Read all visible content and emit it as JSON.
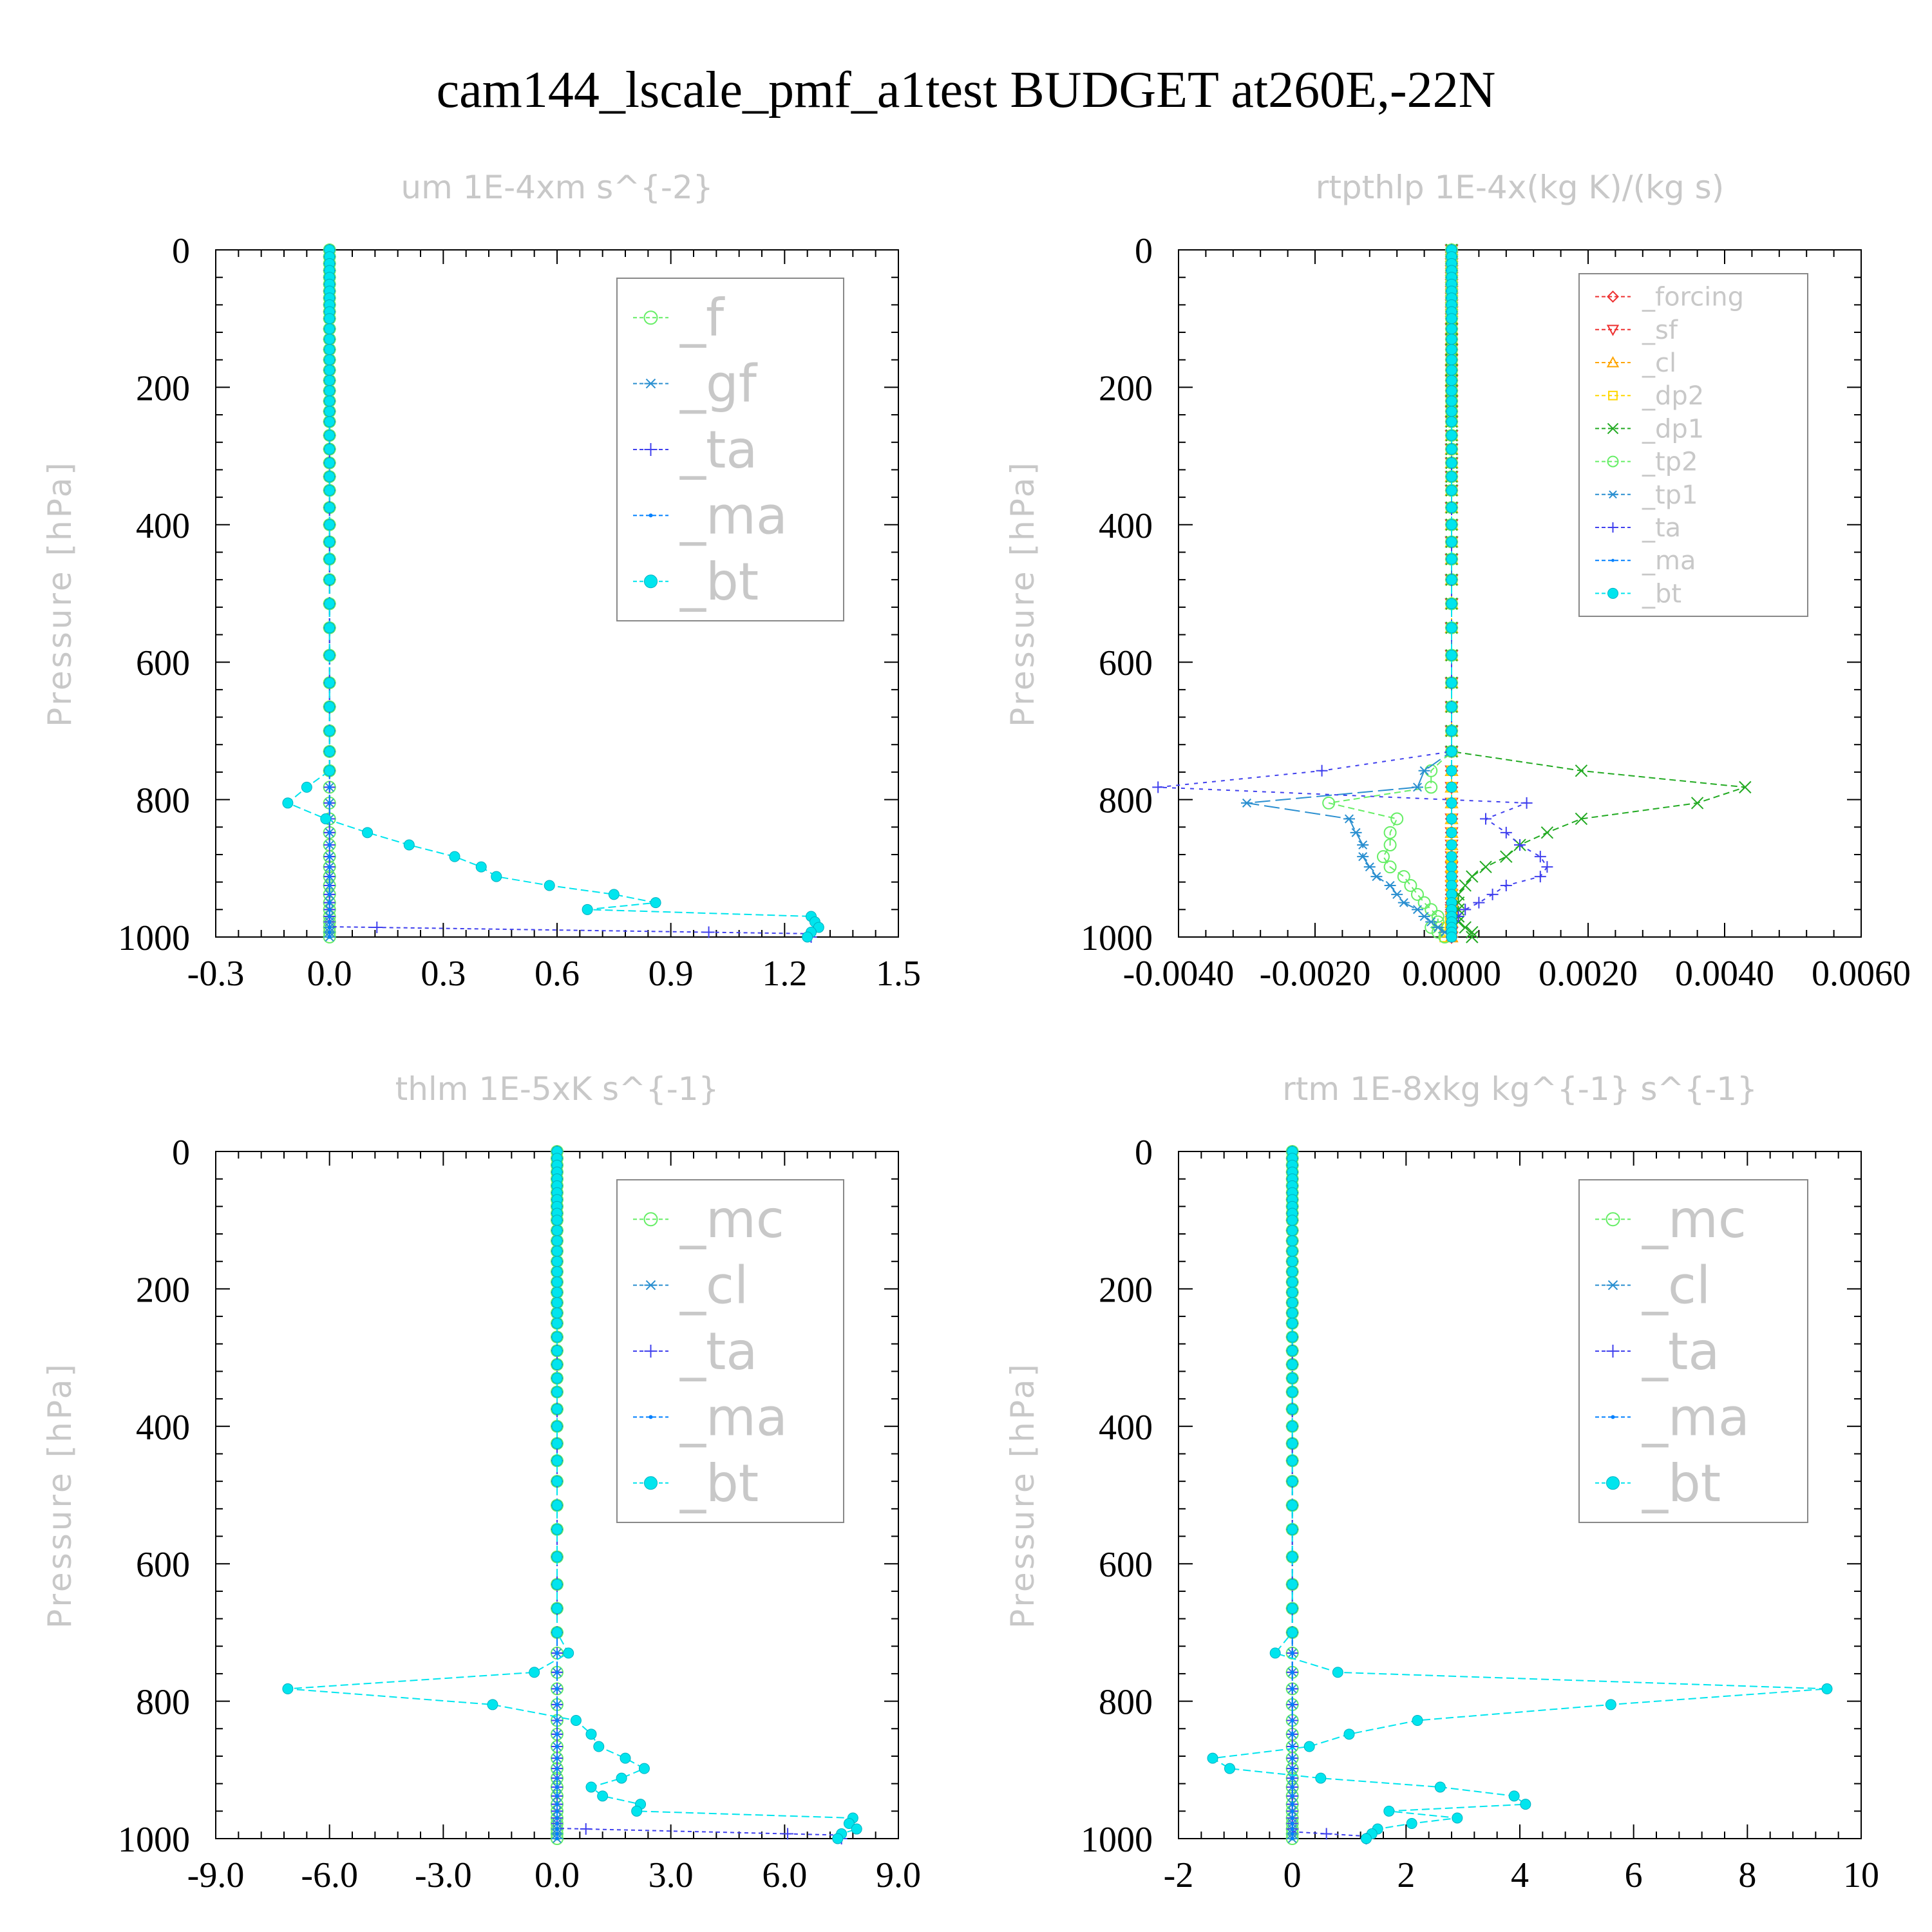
{
  "title": "cam144_lscale_pmf_a1test  BUDGET at260E,-22N",
  "colors": {
    "f": "#66ee66",
    "gf": "#2a8fd0",
    "ta": "#4040ee",
    "ma": "#0080ff",
    "bt": "#00e5ee",
    "mc": "#66ee66",
    "cl_panel3": "#2a8fd0",
    "forcing": "#ee3030",
    "sf": "#ee3030",
    "cl": "#ffa500",
    "dp2": "#ffd700",
    "dp1": "#22aa22",
    "tp2": "#66ee66",
    "tp1": "#2a8fd0"
  },
  "chart_data": [
    {
      "type": "line",
      "title": "um  1E-4xm s^{-2}",
      "ylabel": "Pressure [hPa]",
      "xlabel": "",
      "xlim": [
        -0.3,
        1.5
      ],
      "ylim": [
        1000,
        0
      ],
      "xticks": [
        "-0.3",
        "0.0",
        "0.3",
        "0.6",
        "0.9",
        "1.2",
        "1.5"
      ],
      "yticks": [
        "0",
        "200",
        "400",
        "600",
        "800",
        "1000"
      ],
      "legend_placement": "top-right",
      "legend_font": 80,
      "legend": [
        {
          "key": "f",
          "label": "_f",
          "marker": "circle"
        },
        {
          "key": "gf",
          "label": "_gf",
          "marker": "asterisk"
        },
        {
          "key": "ta",
          "label": "_ta",
          "marker": "plus"
        },
        {
          "key": "ma",
          "label": "_ma",
          "marker": "dot"
        },
        {
          "key": "bt",
          "label": "_bt",
          "marker": "filled"
        }
      ],
      "series": [
        {
          "name": "_f",
          "key": "f",
          "marker": "circle",
          "dash": "6,5",
          "x_const": 0.0
        },
        {
          "name": "_gf",
          "key": "gf",
          "marker": "asterisk",
          "dash": "6,5",
          "x_const": 0.0
        },
        {
          "name": "_ta",
          "key": "ta",
          "marker": "plus",
          "dash": "6,5",
          "points": [
            [
              0,
              0
            ],
            [
              0,
              985
            ],
            [
              1.25,
              995
            ],
            [
              1.27,
              1000
            ]
          ]
        },
        {
          "name": "_ma",
          "key": "ma",
          "marker": "dot",
          "dash": "12,6",
          "x_const": 0.0
        },
        {
          "name": "_bt",
          "key": "bt",
          "marker": "filled",
          "dash": "12,6",
          "points": [
            [
              0,
              0
            ],
            [
              0,
              730
            ],
            [
              0,
              758
            ],
            [
              -0.06,
              782
            ],
            [
              -0.11,
              805
            ],
            [
              -0.01,
              828
            ],
            [
              0.1,
              848
            ],
            [
              0.21,
              866
            ],
            [
              0.33,
              883
            ],
            [
              0.4,
              898
            ],
            [
              0.44,
              912
            ],
            [
              0.58,
              925
            ],
            [
              0.75,
              938
            ],
            [
              0.86,
              950
            ],
            [
              0.68,
              960
            ],
            [
              1.27,
              970
            ],
            [
              1.28,
              978
            ],
            [
              1.29,
              986
            ],
            [
              1.27,
              993
            ],
            [
              1.26,
              1000
            ]
          ]
        }
      ]
    },
    {
      "type": "line",
      "title": "rtpthlp  1E-4x(kg K)/(kg s)",
      "ylabel": "Pressure [hPa]",
      "xlabel": "",
      "xlim": [
        -0.004,
        0.006
      ],
      "ylim": [
        1000,
        0
      ],
      "xticks": [
        "-0.0040",
        "-0.0020",
        "0.0000",
        "0.0020",
        "0.0040",
        "0.0060"
      ],
      "yticks": [
        "0",
        "200",
        "400",
        "600",
        "800",
        "1000"
      ],
      "legend_placement": "top-right",
      "legend_font": 40,
      "legend": [
        {
          "key": "forcing",
          "label": "_forcing",
          "marker": "diamond"
        },
        {
          "key": "sf",
          "label": "_sf",
          "marker": "tridown"
        },
        {
          "key": "cl",
          "label": "_cl",
          "marker": "triup"
        },
        {
          "key": "dp2",
          "label": "_dp2",
          "marker": "square"
        },
        {
          "key": "dp1",
          "label": "_dp1",
          "marker": "cross"
        },
        {
          "key": "tp2",
          "label": "_tp2",
          "marker": "circle"
        },
        {
          "key": "tp1",
          "label": "_tp1",
          "marker": "asterisk"
        },
        {
          "key": "ta",
          "label": "_ta",
          "marker": "plus"
        },
        {
          "key": "ma",
          "label": "_ma",
          "marker": "dot"
        },
        {
          "key": "bt",
          "label": "_bt",
          "marker": "filled"
        }
      ],
      "series": [
        {
          "name": "_forcing",
          "key": "forcing",
          "marker": "diamond",
          "dash": "8,5",
          "x_const": 0.0
        },
        {
          "name": "_sf",
          "key": "sf",
          "marker": "tridown",
          "dash": "8,5",
          "x_const": 0.0
        },
        {
          "name": "_cl",
          "key": "cl",
          "marker": "triup",
          "dash": "8,5",
          "x_const": 0.0
        },
        {
          "name": "_dp2",
          "key": "dp2",
          "marker": "square",
          "dash": "8,5",
          "points": [
            [
              0,
              0
            ],
            [
              0,
              975
            ],
            [
              -0.0001,
              990
            ],
            [
              -0.0001,
              1000
            ]
          ]
        },
        {
          "name": "_dp1",
          "key": "dp1",
          "marker": "cross",
          "dash": "10,6",
          "points": [
            [
              0,
              0
            ],
            [
              0,
              730
            ],
            [
              0.0019,
              758
            ],
            [
              0.0043,
              782
            ],
            [
              0.0036,
              805
            ],
            [
              0.0019,
              828
            ],
            [
              0.0014,
              848
            ],
            [
              0.001,
              866
            ],
            [
              0.0008,
              883
            ],
            [
              0.0005,
              898
            ],
            [
              0.0003,
              912
            ],
            [
              0.0002,
              925
            ],
            [
              0.0001,
              938
            ],
            [
              0.0001,
              950
            ],
            [
              0.0001,
              960
            ],
            [
              0.0001,
              970
            ],
            [
              0.0001,
              978
            ],
            [
              0.0002,
              986
            ],
            [
              0.0003,
              993
            ],
            [
              0.0003,
              1000
            ]
          ]
        },
        {
          "name": "_tp2",
          "key": "tp2",
          "marker": "circle",
          "dash": "10,6",
          "points": [
            [
              0,
              0
            ],
            [
              0,
              730
            ],
            [
              -0.0003,
              758
            ],
            [
              -0.0003,
              782
            ],
            [
              -0.0018,
              805
            ],
            [
              -0.0008,
              828
            ],
            [
              -0.0009,
              848
            ],
            [
              -0.0009,
              866
            ],
            [
              -0.001,
              883
            ],
            [
              -0.0009,
              898
            ],
            [
              -0.0007,
              912
            ],
            [
              -0.0006,
              925
            ],
            [
              -0.0005,
              938
            ],
            [
              -0.0004,
              950
            ],
            [
              -0.0003,
              960
            ],
            [
              -0.0002,
              970
            ],
            [
              -0.0002,
              978
            ],
            [
              -0.0003,
              986
            ],
            [
              -0.0002,
              993
            ],
            [
              -0.0001,
              1000
            ]
          ]
        },
        {
          "name": "_tp1",
          "key": "tp1",
          "marker": "asterisk",
          "dash": "24,8",
          "points": [
            [
              0,
              0
            ],
            [
              0,
              730
            ],
            [
              -0.0004,
              758
            ],
            [
              -0.0005,
              782
            ],
            [
              -0.003,
              805
            ],
            [
              -0.0015,
              828
            ],
            [
              -0.0014,
              848
            ],
            [
              -0.0013,
              866
            ],
            [
              -0.0013,
              883
            ],
            [
              -0.0012,
              898
            ],
            [
              -0.0011,
              912
            ],
            [
              -0.0009,
              925
            ],
            [
              -0.0008,
              938
            ],
            [
              -0.0007,
              950
            ],
            [
              -0.0005,
              960
            ],
            [
              -0.0004,
              970
            ],
            [
              -0.0003,
              978
            ],
            [
              -0.0002,
              986
            ],
            [
              -0.0001,
              993
            ],
            [
              0,
              1000
            ]
          ]
        },
        {
          "name": "_ta",
          "key": "ta",
          "marker": "plus",
          "dash": "6,8",
          "points": [
            [
              0,
              0
            ],
            [
              0,
              730
            ],
            [
              -0.0019,
              758
            ],
            [
              -0.0043,
              782
            ],
            [
              0.0011,
              805
            ],
            [
              0.0005,
              828
            ],
            [
              0.0008,
              848
            ],
            [
              0.001,
              866
            ],
            [
              0.0013,
              883
            ],
            [
              0.0014,
              898
            ],
            [
              0.0013,
              912
            ],
            [
              0.0008,
              925
            ],
            [
              0.0006,
              938
            ],
            [
              0.0004,
              950
            ],
            [
              0.0002,
              960
            ],
            [
              0.0001,
              970
            ],
            [
              0,
              978
            ],
            [
              0,
              986
            ],
            [
              0,
              993
            ],
            [
              0,
              1000
            ]
          ]
        },
        {
          "name": "_ma",
          "key": "ma",
          "marker": "dot",
          "dash": "12,6",
          "x_const": 0.0
        },
        {
          "name": "_bt",
          "key": "bt",
          "marker": "filled",
          "dash": "12,6",
          "x_const": 0.0
        }
      ]
    },
    {
      "type": "line",
      "title": "thlm  1E-5xK s^{-1}",
      "ylabel": "Pressure [hPa]",
      "xlabel": "",
      "xlim": [
        -9.0,
        9.0
      ],
      "ylim": [
        1000,
        0
      ],
      "xticks": [
        "-9.0",
        "-6.0",
        "-3.0",
        "0.0",
        "3.0",
        "6.0",
        "9.0"
      ],
      "yticks": [
        "0",
        "200",
        "400",
        "600",
        "800",
        "1000"
      ],
      "legend_placement": "top-right",
      "legend_font": 80,
      "legend": [
        {
          "key": "mc",
          "label": "_mc",
          "marker": "circle"
        },
        {
          "key": "gf",
          "label": "_cl",
          "marker": "asterisk"
        },
        {
          "key": "ta",
          "label": "_ta",
          "marker": "plus"
        },
        {
          "key": "ma",
          "label": "_ma",
          "marker": "dot"
        },
        {
          "key": "bt",
          "label": "_bt",
          "marker": "filled"
        }
      ],
      "series": [
        {
          "name": "_mc",
          "key": "mc",
          "marker": "circle",
          "dash": "6,5",
          "x_const": 0.0
        },
        {
          "name": "_cl",
          "key": "gf",
          "marker": "asterisk",
          "dash": "6,5",
          "x_const": 0.0
        },
        {
          "name": "_ta",
          "key": "ta",
          "marker": "plus",
          "dash": "6,5",
          "points": [
            [
              0,
              0
            ],
            [
              0,
              985
            ],
            [
              7.6,
              995
            ],
            [
              7.5,
              1000
            ]
          ]
        },
        {
          "name": "_ma",
          "key": "ma",
          "marker": "dot",
          "dash": "12,6",
          "x_const": 0.0
        },
        {
          "name": "_bt",
          "key": "bt",
          "marker": "filled",
          "dash": "12,6",
          "points": [
            [
              0,
              0
            ],
            [
              0,
              700
            ],
            [
              0.3,
              730
            ],
            [
              -0.6,
              758
            ],
            [
              -7.1,
              782
            ],
            [
              -1.7,
              805
            ],
            [
              0.5,
              828
            ],
            [
              0.9,
              848
            ],
            [
              1.1,
              866
            ],
            [
              1.8,
              883
            ],
            [
              2.3,
              898
            ],
            [
              1.7,
              912
            ],
            [
              0.9,
              925
            ],
            [
              1.2,
              938
            ],
            [
              2.2,
              950
            ],
            [
              2.1,
              960
            ],
            [
              7.8,
              970
            ],
            [
              7.7,
              978
            ],
            [
              7.9,
              986
            ],
            [
              7.5,
              993
            ],
            [
              7.4,
              1000
            ]
          ]
        }
      ]
    },
    {
      "type": "line",
      "title": "rtm  1E-8xkg kg^{-1} s^{-1}",
      "ylabel": "Pressure [hPa]",
      "xlabel": "",
      "xlim": [
        -2,
        10
      ],
      "ylim": [
        1000,
        0
      ],
      "xticks": [
        "-2",
        "0",
        "2",
        "4",
        "6",
        "8",
        "10"
      ],
      "yticks": [
        "0",
        "200",
        "400",
        "600",
        "800",
        "1000"
      ],
      "legend_placement": "top-right",
      "legend_font": 80,
      "legend": [
        {
          "key": "mc",
          "label": "_mc",
          "marker": "circle"
        },
        {
          "key": "gf",
          "label": "_cl",
          "marker": "asterisk"
        },
        {
          "key": "ta",
          "label": "_ta",
          "marker": "plus"
        },
        {
          "key": "ma",
          "label": "_ma",
          "marker": "dot"
        },
        {
          "key": "bt",
          "label": "_bt",
          "marker": "filled"
        }
      ],
      "series": [
        {
          "name": "_mc",
          "key": "mc",
          "marker": "circle",
          "dash": "6,5",
          "x_const": 0.0
        },
        {
          "name": "_cl",
          "key": "gf",
          "marker": "asterisk",
          "dash": "6,5",
          "x_const": 0.0
        },
        {
          "name": "_ta",
          "key": "ta",
          "marker": "plus",
          "dash": "6,5",
          "points": [
            [
              0,
              0
            ],
            [
              0,
              990
            ],
            [
              1.2,
              996
            ],
            [
              1.3,
              1000
            ]
          ]
        },
        {
          "name": "_ma",
          "key": "ma",
          "marker": "dot",
          "dash": "12,6",
          "x_const": 0.0
        },
        {
          "name": "_bt",
          "key": "bt",
          "marker": "filled",
          "dash": "12,6",
          "points": [
            [
              0,
              0
            ],
            [
              0,
              700
            ],
            [
              -0.3,
              730
            ],
            [
              0.8,
              758
            ],
            [
              9.4,
              782
            ],
            [
              5.6,
              805
            ],
            [
              2.2,
              828
            ],
            [
              1.0,
              848
            ],
            [
              0.3,
              866
            ],
            [
              -1.4,
              883
            ],
            [
              -1.1,
              898
            ],
            [
              0.5,
              912
            ],
            [
              2.6,
              925
            ],
            [
              3.9,
              938
            ],
            [
              4.1,
              950
            ],
            [
              1.7,
              960
            ],
            [
              2.9,
              970
            ],
            [
              2.1,
              978
            ],
            [
              1.5,
              986
            ],
            [
              1.4,
              993
            ],
            [
              1.3,
              1000
            ]
          ]
        }
      ]
    }
  ]
}
